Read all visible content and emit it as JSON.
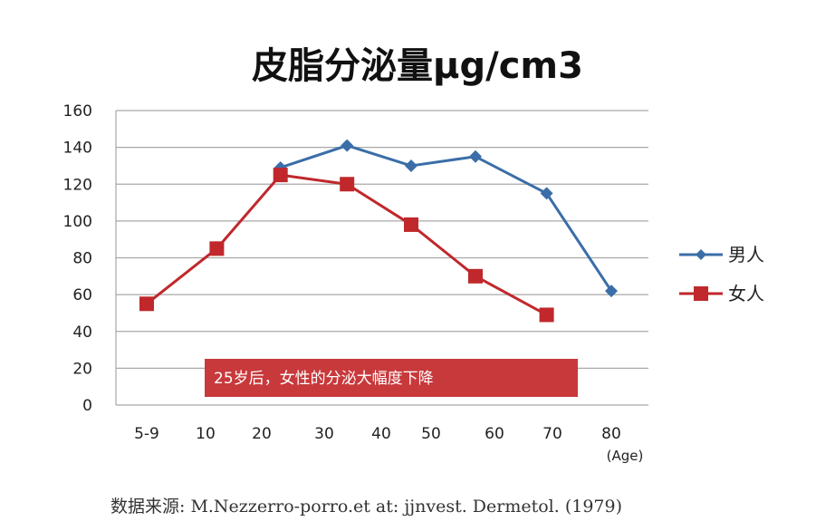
{
  "chart_data": {
    "type": "line",
    "title": "皮脂分泌量μg/cm3",
    "categories": [
      "5-9",
      "10",
      "20",
      "30",
      "40",
      "50",
      "60",
      "70",
      "80"
    ],
    "x_unit_label": "(Age)",
    "ylim": [
      0,
      160
    ],
    "yticks": [
      0,
      20,
      40,
      60,
      80,
      100,
      120,
      140,
      160
    ],
    "grid": true,
    "legend_position": "right",
    "series": [
      {
        "name": "男人",
        "color": "#3b6ea8",
        "marker": "diamond",
        "points": [
          {
            "x": 2.3,
            "y": 129
          },
          {
            "x": 3.4,
            "y": 141
          },
          {
            "x": 4.6,
            "y": 130
          },
          {
            "x": 5.7,
            "y": 135
          },
          {
            "x": 6.9,
            "y": 115
          },
          {
            "x": 8.0,
            "y": 62
          }
        ]
      },
      {
        "name": "女人",
        "color": "#c0282c",
        "marker": "square",
        "points": [
          {
            "x": 0.0,
            "y": 55
          },
          {
            "x": 1.2,
            "y": 85
          },
          {
            "x": 2.3,
            "y": 125
          },
          {
            "x": 3.4,
            "y": 120
          },
          {
            "x": 4.6,
            "y": 98
          },
          {
            "x": 5.7,
            "y": 70
          },
          {
            "x": 6.9,
            "y": 49
          }
        ]
      }
    ],
    "annotation": {
      "text": "25岁后，女性的分泌大幅度下降",
      "color": "#c8393c"
    }
  },
  "source": "数据来源: M.Nezzerro-porro.et at: jjnvest. Dermetol. (1979)"
}
